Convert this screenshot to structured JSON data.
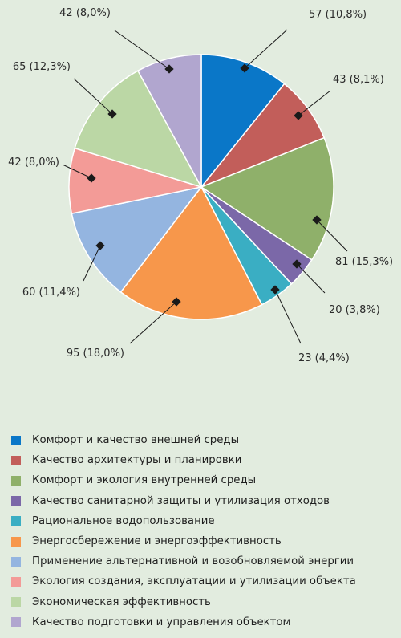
{
  "chart_data": {
    "type": "pie",
    "start_angle_deg": 90,
    "direction": "clockwise",
    "slices": [
      {
        "value": 57,
        "label": "57 (10,8%)",
        "category": "Комфорт и качество внешней среды",
        "color": "#0a77c8"
      },
      {
        "value": 43,
        "label": "43 (8,1%)",
        "category": "Качество архитектуры и планировки",
        "color": "#c25e5a"
      },
      {
        "value": 81,
        "label": "81 (15,3%)",
        "category": "Комфорт и экология внутренней среды",
        "color": "#8fb06a"
      },
      {
        "value": 20,
        "label": "20 (3,8%)",
        "category": "Качество санитарной защиты и утилизация отходов",
        "color": "#7b68a8"
      },
      {
        "value": 23,
        "label": "23 (4,4%)",
        "category": "Рациональное водопользование",
        "color": "#3aaec3"
      },
      {
        "value": 95,
        "label": "95 (18,0%)",
        "category": "Энергосбережение и энергоэффективность",
        "color": "#f7974b"
      },
      {
        "value": 60,
        "label": "60 (11,4%)",
        "category": "Применение альтернативной и возобновляемой энергии",
        "color": "#94b5e0"
      },
      {
        "value": 42,
        "label": "42 (8,0%)",
        "category": "Экология создания, эксплуатации и утилизации объекта",
        "color": "#f39b97"
      },
      {
        "value": 65,
        "label": "65 (12,3%)",
        "category": "Экономическая эффективность",
        "color": "#bbd7a5"
      },
      {
        "value": 42,
        "label": "42 (8,0%)",
        "category": "Качество подготовки и управления объектом",
        "color": "#b1a6cf"
      }
    ]
  }
}
